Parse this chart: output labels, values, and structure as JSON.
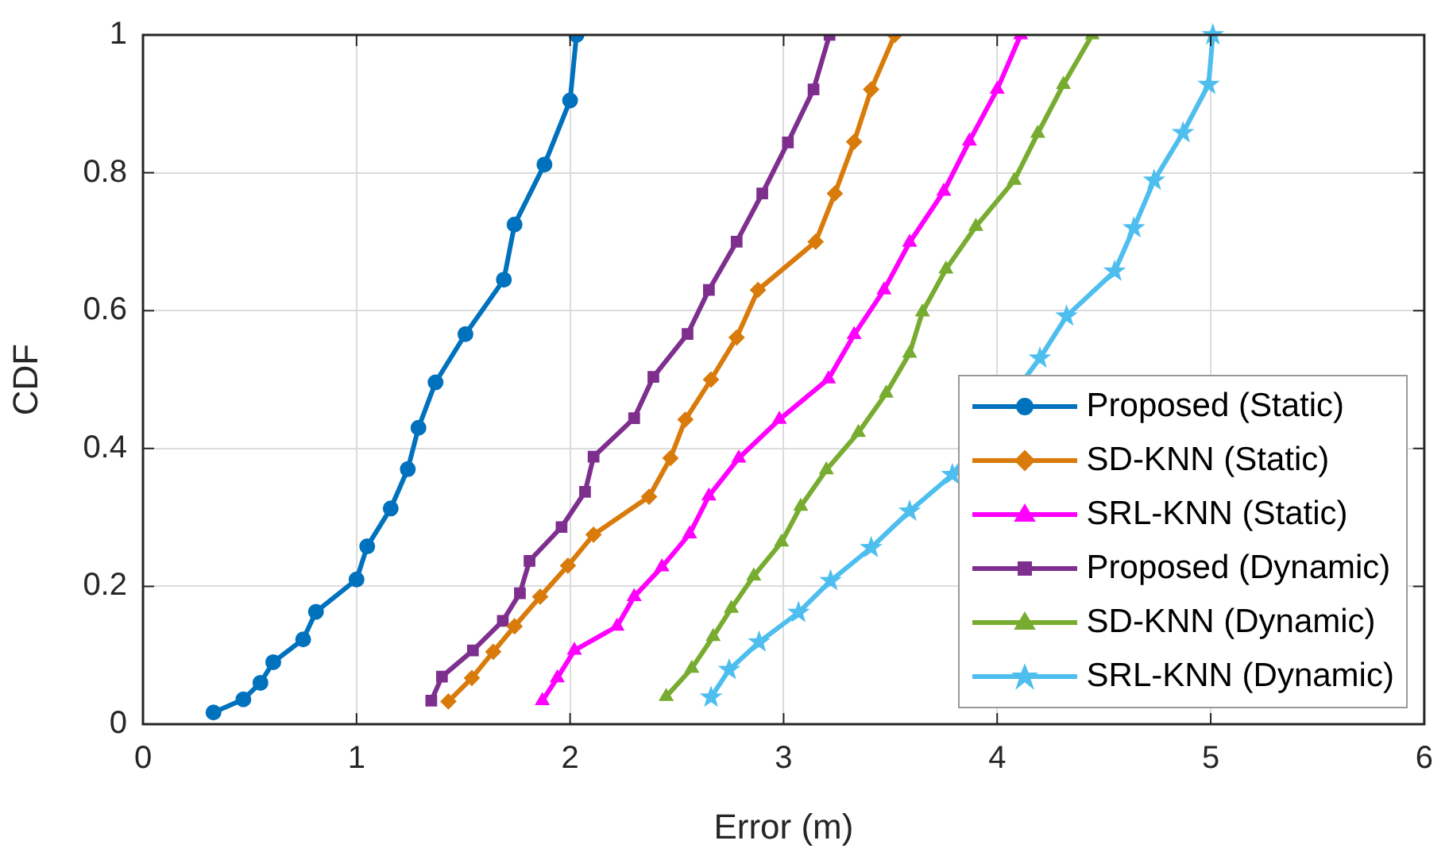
{
  "chart_data": {
    "type": "line",
    "xlabel": "Error (m)",
    "ylabel": "CDF",
    "xlim": [
      0,
      6
    ],
    "xticks": [
      0,
      1,
      2,
      3,
      4,
      5,
      6
    ],
    "ylim": [
      0,
      1
    ],
    "yticks": [
      0,
      0.2,
      0.4,
      0.6,
      0.8,
      1
    ],
    "grid": true,
    "legend": "bottom right",
    "line_style": "solid",
    "series": [
      {
        "name": "Proposed (Static)",
        "color": "#0072bd",
        "marker": "circle",
        "x": [
          0.33,
          0.47,
          0.55,
          0.61,
          0.75,
          0.81,
          1.0,
          1.05,
          1.16,
          1.24,
          1.29,
          1.37,
          1.51,
          1.69,
          1.74,
          1.88,
          2.0,
          2.03
        ],
        "values": [
          0.017,
          0.036,
          0.06,
          0.09,
          0.123,
          0.163,
          0.21,
          0.258,
          0.313,
          0.37,
          0.43,
          0.496,
          0.566,
          0.645,
          0.725,
          0.812,
          0.905,
          1.0
        ]
      },
      {
        "name": "SD-KNN (Static)",
        "color": "#d97b0b",
        "marker": "diamond",
        "x": [
          1.43,
          1.54,
          1.64,
          1.74,
          1.86,
          1.99,
          2.11,
          2.37,
          2.47,
          2.54,
          2.66,
          2.78,
          2.88,
          3.15,
          3.24,
          3.33,
          3.41,
          3.52
        ],
        "values": [
          0.033,
          0.067,
          0.105,
          0.142,
          0.185,
          0.23,
          0.275,
          0.33,
          0.386,
          0.442,
          0.5,
          0.561,
          0.63,
          0.7,
          0.77,
          0.845,
          0.921,
          1.0
        ]
      },
      {
        "name": "SRL-KNN (Static)",
        "color": "#ff00ff",
        "marker": "triangle",
        "x": [
          1.87,
          1.94,
          2.02,
          2.22,
          2.3,
          2.43,
          2.56,
          2.65,
          2.79,
          2.98,
          3.21,
          3.33,
          3.47,
          3.59,
          3.75,
          3.87,
          4.0,
          4.11
        ],
        "values": [
          0.034,
          0.067,
          0.107,
          0.142,
          0.185,
          0.228,
          0.276,
          0.331,
          0.386,
          0.442,
          0.501,
          0.565,
          0.63,
          0.699,
          0.773,
          0.846,
          0.921,
          1.0
        ]
      },
      {
        "name": "Proposed (Dynamic)",
        "color": "#7e2f8e",
        "marker": "square",
        "x": [
          1.35,
          1.4,
          1.545,
          1.685,
          1.765,
          1.81,
          1.96,
          2.07,
          2.11,
          2.3,
          2.39,
          2.55,
          2.65,
          2.78,
          2.9,
          3.02,
          3.14,
          3.215
        ],
        "values": [
          0.034,
          0.069,
          0.107,
          0.15,
          0.19,
          0.237,
          0.286,
          0.337,
          0.388,
          0.444,
          0.504,
          0.566,
          0.63,
          0.7,
          0.77,
          0.844,
          0.921,
          1.0
        ]
      },
      {
        "name": "SD-KNN (Dynamic)",
        "color": "#77ac30",
        "marker": "triangle",
        "x": [
          2.45,
          2.57,
          2.67,
          2.755,
          2.86,
          2.99,
          3.08,
          3.2,
          3.35,
          3.48,
          3.59,
          3.65,
          3.76,
          3.9,
          4.08,
          4.19,
          4.31,
          4.445
        ],
        "values": [
          0.04,
          0.081,
          0.127,
          0.168,
          0.215,
          0.264,
          0.316,
          0.369,
          0.423,
          0.48,
          0.538,
          0.598,
          0.66,
          0.722,
          0.789,
          0.857,
          0.928,
          1.0
        ]
      },
      {
        "name": "SRL-KNN (Dynamic)",
        "color": "#4dbeee",
        "marker": "star",
        "x": [
          2.66,
          2.745,
          2.885,
          3.07,
          3.22,
          3.41,
          3.59,
          3.79,
          4.2,
          4.325,
          4.55,
          4.64,
          4.735,
          4.87,
          4.99,
          5.01
        ],
        "values": [
          0.039,
          0.079,
          0.119,
          0.162,
          0.208,
          0.256,
          0.309,
          0.362,
          0.531,
          0.592,
          0.657,
          0.72,
          0.789,
          0.858,
          0.928,
          1.0
        ]
      }
    ]
  }
}
